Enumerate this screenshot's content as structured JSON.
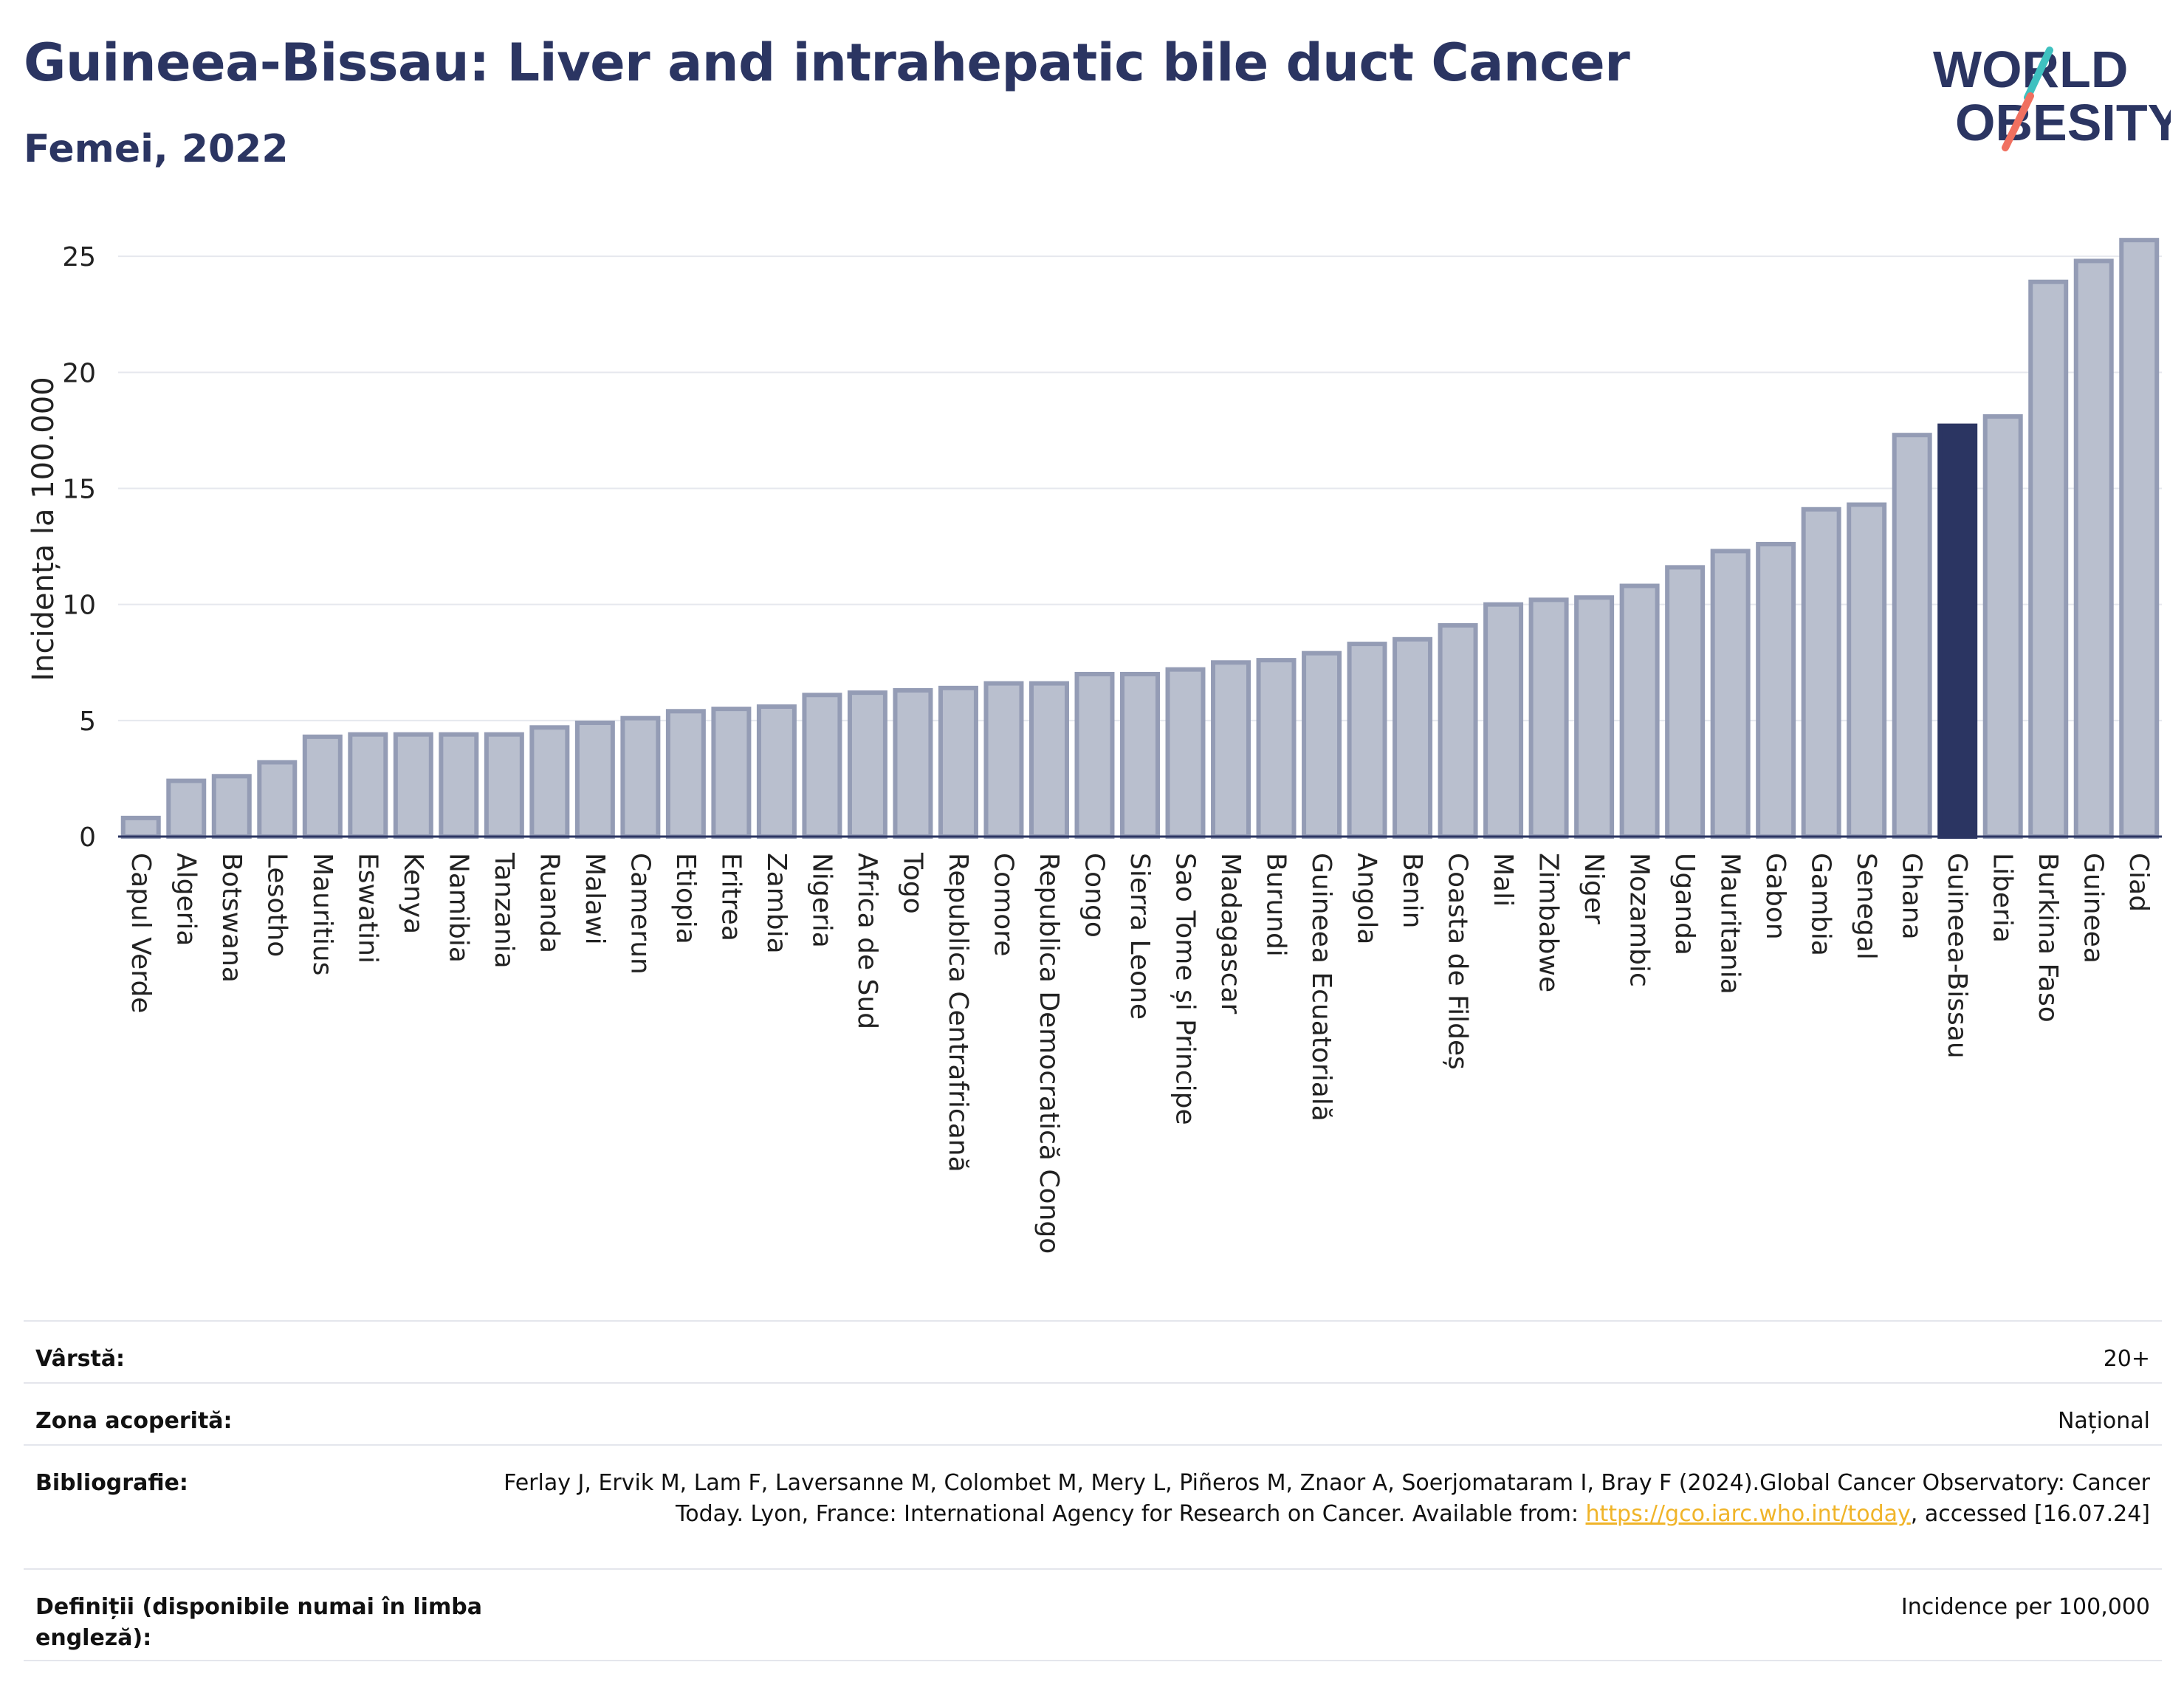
{
  "title": "Guineea-Bissau: Liver and intrahepatic bile duct Cancer",
  "subtitle": "Femei, 2022",
  "logo": {
    "line1": "WORLD",
    "line2": "OBESITY"
  },
  "colors": {
    "bar": "#b9bfce",
    "bar_stroke": "#949cb5",
    "highlight": "#2b3562",
    "text": "#2b3562",
    "grid": "#e6e8ee"
  },
  "chart_data": {
    "type": "bar",
    "ylabel": "Incidența la 100.000",
    "xlabel": "",
    "ylim": [
      0,
      26.5
    ],
    "yticks": [
      0,
      5,
      10,
      15,
      20,
      25
    ],
    "grid": true,
    "highlight": "Guineea-Bissau",
    "categories": [
      "Capul Verde",
      "Algeria",
      "Botswana",
      "Lesotho",
      "Mauritius",
      "Eswatini",
      "Kenya",
      "Namibia",
      "Tanzania",
      "Ruanda",
      "Malawi",
      "Camerun",
      "Etiopia",
      "Eritrea",
      "Zambia",
      "Nigeria",
      "Africa de Sud",
      "Togo",
      "Republica Centrafricană",
      "Comore",
      "Republica Democratică Congo",
      "Congo",
      "Sierra Leone",
      "Sao Tome și Principe",
      "Madagascar",
      "Burundi",
      "Guineea Ecuatorială",
      "Angola",
      "Benin",
      "Coasta de Fildeș",
      "Mali",
      "Zimbabwe",
      "Niger",
      "Mozambic",
      "Uganda",
      "Mauritania",
      "Gabon",
      "Gambia",
      "Senegal",
      "Ghana",
      "Guineea-Bissau",
      "Liberia",
      "Burkina Faso",
      "Guineea",
      "Ciad"
    ],
    "values": [
      0.8,
      2.4,
      2.6,
      3.2,
      4.3,
      4.4,
      4.4,
      4.4,
      4.4,
      4.7,
      4.9,
      5.1,
      5.4,
      5.5,
      5.6,
      6.1,
      6.2,
      6.3,
      6.4,
      6.6,
      6.6,
      7.0,
      7.0,
      7.2,
      7.5,
      7.6,
      7.9,
      8.3,
      8.5,
      9.1,
      10.0,
      10.2,
      10.3,
      10.8,
      11.6,
      12.3,
      12.6,
      14.1,
      14.3,
      17.3,
      17.7,
      18.1,
      23.9,
      24.8,
      25.7
    ]
  },
  "info": [
    {
      "label": "Vârstă:",
      "value": "20+"
    },
    {
      "label": "Zona acoperită:",
      "value": "Național"
    },
    {
      "label": "Bibliografie:",
      "value_pre": "Ferlay J, Ervik M, Lam F, Laversanne M, Colombet M, Mery L, Piñeros M, Znaor A, Soerjomataram I, Bray F (2024).Global Cancer Observatory: Cancer Today. Lyon, France: International Agency for Research on Cancer. Available from: ",
      "link": "https://gco.iarc.who.int/today",
      "value_post": ", accessed [16.07.24]"
    },
    {
      "label": "Definiții (disponibile numai în limba engleză):",
      "value": "Incidence per 100,000"
    }
  ]
}
